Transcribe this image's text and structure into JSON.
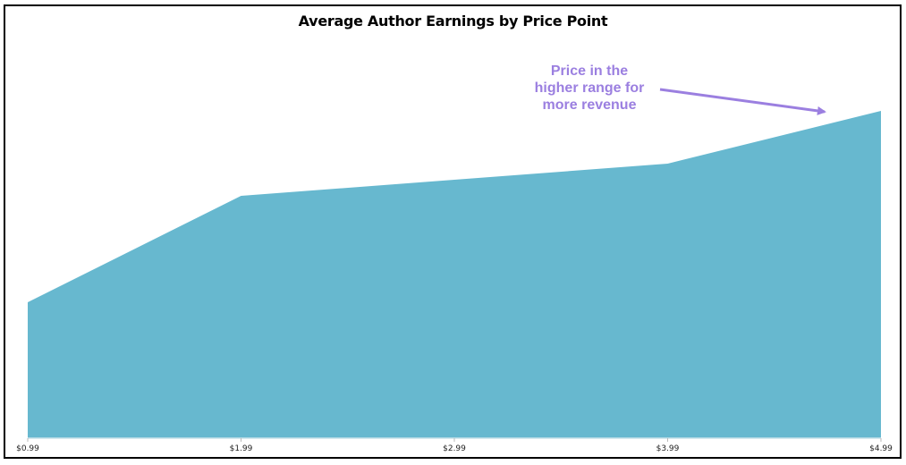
{
  "chart_data": {
    "type": "area",
    "title": "Average Author Earnings by Price Point",
    "xlabel": "",
    "ylabel": "",
    "categories": [
      "$0.99",
      "$1.99",
      "$2.99",
      "$3.99",
      "$4.99"
    ],
    "values": [
      152,
      271,
      289,
      307,
      366
    ],
    "value_units": "relative (no y-axis shown; estimated from pixel heights)",
    "ylim": [
      0,
      390
    ],
    "grid": false,
    "legend": null,
    "fill_color": "#67b8cf",
    "annotations": [
      {
        "text": "Price in the higher range for more revenue",
        "lines": [
          "Price in the",
          "higher range for",
          "more revenue"
        ],
        "color": "#9b7fe0",
        "arrow_to": "$4.99"
      }
    ]
  },
  "annotation": {
    "line1": "Price in the",
    "line2": "higher range for",
    "line3": "more revenue"
  }
}
